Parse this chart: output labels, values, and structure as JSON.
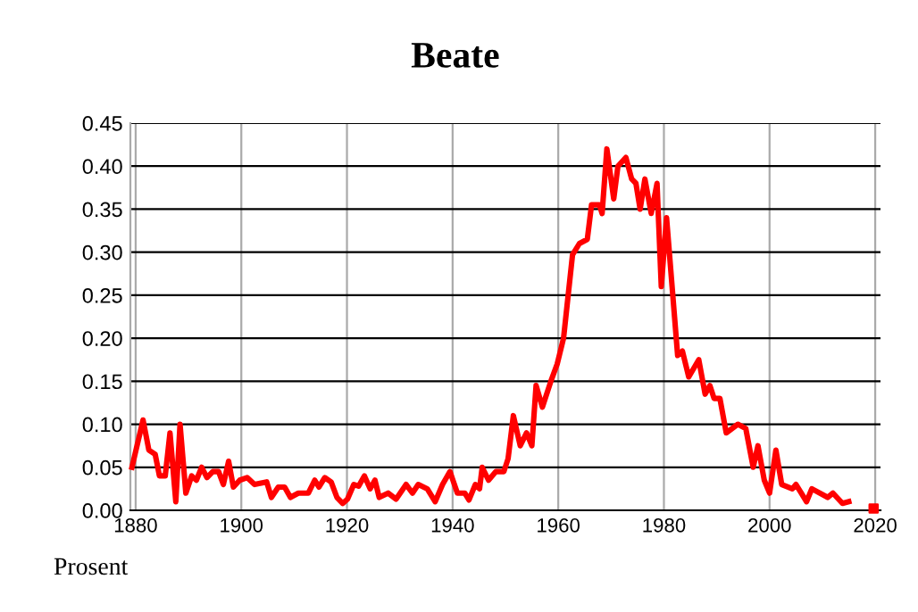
{
  "chart_data": {
    "type": "line",
    "title": "Beate",
    "annotations": [
      "Prosent"
    ],
    "series": [
      {
        "color": "#ff0000",
        "x": [
          1879.3,
          1881.4,
          1882.5,
          1883.7,
          1884.5,
          1885.6,
          1886.5,
          1887.6,
          1888.4,
          1889.5,
          1890.6,
          1891.5,
          1892.5,
          1893.5,
          1894.6,
          1895.7,
          1896.6,
          1897.6,
          1898.5,
          1899.7,
          1901.1,
          1902.5,
          1904.8,
          1905.7,
          1907,
          1908.2,
          1909.3,
          1910.8,
          1912.7,
          1913.9,
          1914.7,
          1915.8,
          1917,
          1918.1,
          1919.2,
          1920.1,
          1921.3,
          1922.2,
          1923.3,
          1924.4,
          1925.3,
          1926.1,
          1927.8,
          1929.3,
          1931.2,
          1932.4,
          1933.5,
          1935.2,
          1936.7,
          1938.1,
          1939.5,
          1940.9,
          1942.3,
          1943.1,
          1944.3,
          1945.1,
          1945.6,
          1946.8,
          1948.2,
          1949.7,
          1950.5,
          1951.5,
          1952.8,
          1954,
          1955,
          1955.8,
          1957,
          1958.6,
          1959.8,
          1961,
          1962.7,
          1964,
          1965.5,
          1966.3,
          1967.8,
          1968.3,
          1969.2,
          1970.5,
          1971.3,
          1972.8,
          1973.9,
          1974.7,
          1975.5,
          1976.4,
          1977.6,
          1978.7,
          1979.5,
          1980.5,
          1982.6,
          1983.5,
          1984.7,
          1986.6,
          1987.8,
          1988.7,
          1989.5,
          1990.6,
          1991.8,
          1994,
          1995.5,
          1996.9,
          1997.8,
          1999,
          2000,
          2001.2,
          2002.3,
          2004.3,
          2005,
          2006,
          2007,
          2008,
          2011,
          2012,
          2013.8,
          2015
        ],
        "values": [
          0.05,
          0.105,
          0.07,
          0.065,
          0.04,
          0.04,
          0.09,
          0.01,
          0.1,
          0.02,
          0.04,
          0.035,
          0.05,
          0.038,
          0.045,
          0.045,
          0.03,
          0.057,
          0.027,
          0.035,
          0.038,
          0.03,
          0.033,
          0.015,
          0.027,
          0.027,
          0.015,
          0.02,
          0.02,
          0.035,
          0.027,
          0.038,
          0.033,
          0.015,
          0.008,
          0.013,
          0.03,
          0.028,
          0.04,
          0.025,
          0.035,
          0.015,
          0.02,
          0.013,
          0.03,
          0.02,
          0.03,
          0.025,
          0.01,
          0.03,
          0.045,
          0.02,
          0.02,
          0.012,
          0.03,
          0.025,
          0.05,
          0.035,
          0.045,
          0.045,
          0.06,
          0.11,
          0.075,
          0.09,
          0.075,
          0.145,
          0.12,
          0.15,
          0.17,
          0.2,
          0.297,
          0.31,
          0.315,
          0.355,
          0.355,
          0.345,
          0.42,
          0.362,
          0.4,
          0.41,
          0.385,
          0.38,
          0.35,
          0.385,
          0.345,
          0.38,
          0.26,
          0.34,
          0.18,
          0.185,
          0.155,
          0.175,
          0.135,
          0.145,
          0.13,
          0.13,
          0.09,
          0.1,
          0.095,
          0.05,
          0.075,
          0.035,
          0.02,
          0.07,
          0.03,
          0.025,
          0.03,
          0.02,
          0.01,
          0.025,
          0.015,
          0.02,
          0.008,
          0.01
        ]
      },
      {
        "type": "scatter",
        "color": "#ff0000",
        "x": [
          2019.7
        ],
        "values": [
          0.002
        ]
      }
    ],
    "xlim": [
      1879,
      2021
    ],
    "xticks": [
      1880,
      1900,
      1920,
      1940,
      1960,
      1980,
      2000,
      2020
    ],
    "ylim": [
      0,
      0.45
    ],
    "yticks": [
      {
        "value": 0,
        "label": "0.00"
      },
      {
        "value": 0.05,
        "label": "0.05"
      },
      {
        "value": 0.1,
        "label": "0.10"
      },
      {
        "value": 0.15,
        "label": "0.15"
      },
      {
        "value": 0.2,
        "label": "0.20"
      },
      {
        "value": 0.25,
        "label": "0.25"
      },
      {
        "value": 0.3,
        "label": "0.30"
      },
      {
        "value": 0.35,
        "label": "0.35"
      },
      {
        "value": 0.4,
        "label": "0.40"
      },
      {
        "value": 0.45,
        "label": "0.45"
      }
    ],
    "grid": true
  }
}
